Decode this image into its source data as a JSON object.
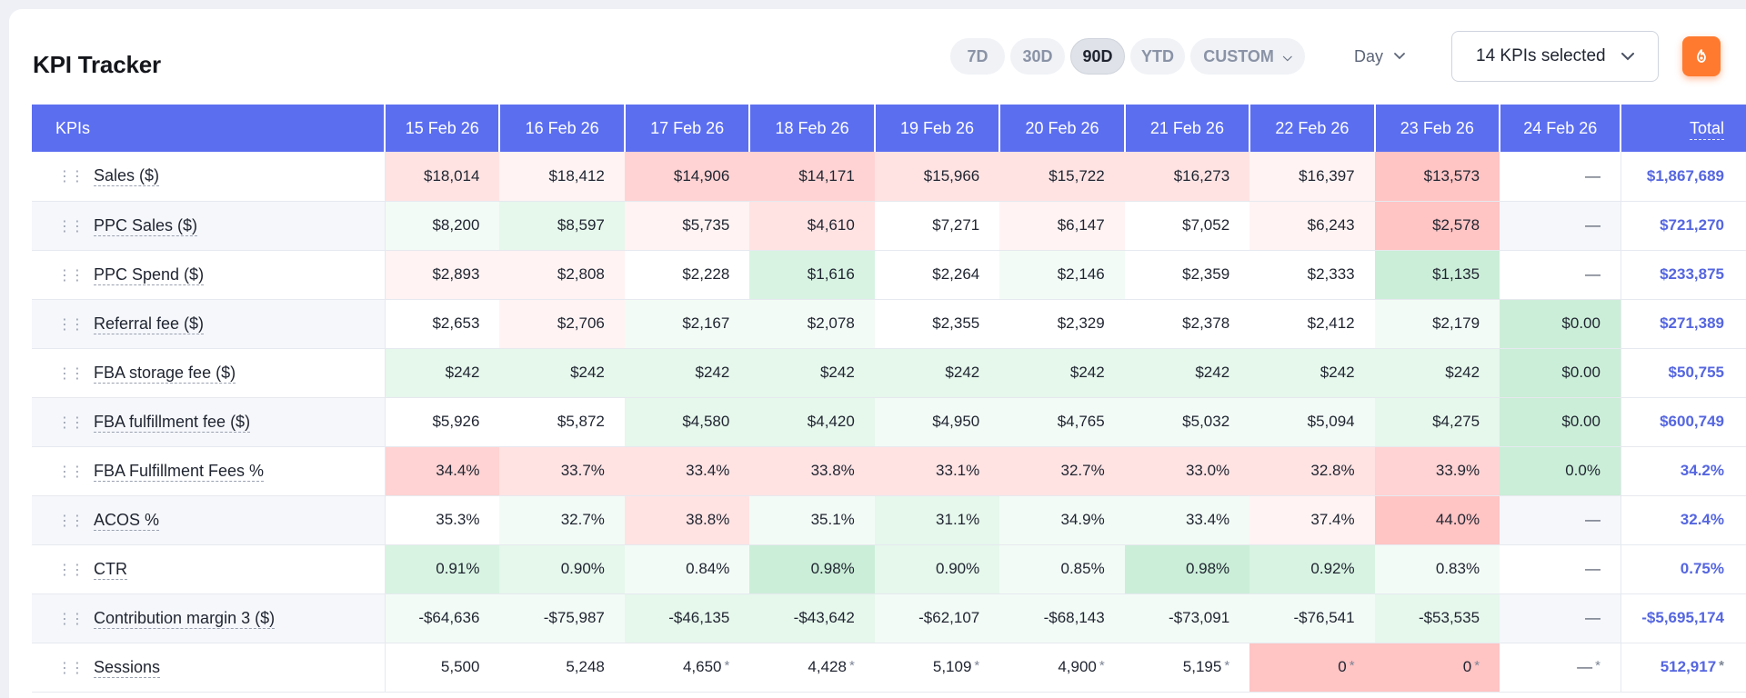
{
  "header": {
    "title": "KPI Tracker",
    "ranges": [
      "7D",
      "30D",
      "90D",
      "YTD"
    ],
    "active_range": "90D",
    "custom_label": "CUSTOM",
    "granularity": "Day",
    "kpi_selector": "14 KPIs selected",
    "action_icon": "refresh-flame-icon"
  },
  "table": {
    "kpi_header": "KPIs",
    "dates": [
      "15 Feb 26",
      "16 Feb 26",
      "17 Feb 26",
      "18 Feb 26",
      "19 Feb 26",
      "20 Feb 26",
      "21 Feb 26",
      "22 Feb 26",
      "23 Feb 26",
      "24 Feb 26"
    ],
    "total_header": "Total",
    "colors": {
      "r1": "#fff3f3",
      "r2": "#ffe3e3",
      "r3": "#ffd3d3",
      "r4": "#ffc4c4",
      "g1": "#f3fbf6",
      "g2": "#e6f7ec",
      "g3": "#d8f3e2",
      "g4": "#cbeed8",
      "w": "#ffffff",
      "a": "#f5f7fb"
    },
    "rows": [
      {
        "name": "Sales ($)",
        "total": "$1,867,689",
        "cells": [
          [
            "$18,014",
            "r2"
          ],
          [
            "$18,412",
            "r1"
          ],
          [
            "$14,906",
            "r3"
          ],
          [
            "$14,171",
            "r3"
          ],
          [
            "$15,966",
            "r2"
          ],
          [
            "$15,722",
            "r2"
          ],
          [
            "$16,273",
            "r2"
          ],
          [
            "$16,397",
            "r1"
          ],
          [
            "$13,573",
            "r4"
          ],
          [
            "—",
            "w"
          ]
        ]
      },
      {
        "name": "PPC Sales ($)",
        "total": "$721,270",
        "cells": [
          [
            "$8,200",
            "g1"
          ],
          [
            "$8,597",
            "g2"
          ],
          [
            "$5,735",
            "r1"
          ],
          [
            "$4,610",
            "r2"
          ],
          [
            "$7,271",
            "w"
          ],
          [
            "$6,147",
            "r1"
          ],
          [
            "$7,052",
            "w"
          ],
          [
            "$6,243",
            "r1"
          ],
          [
            "$2,578",
            "r4"
          ],
          [
            "—",
            "a"
          ]
        ]
      },
      {
        "name": "PPC Spend ($)",
        "total": "$233,875",
        "cells": [
          [
            "$2,893",
            "r1"
          ],
          [
            "$2,808",
            "r1"
          ],
          [
            "$2,228",
            "w"
          ],
          [
            "$1,616",
            "g3"
          ],
          [
            "$2,264",
            "w"
          ],
          [
            "$2,146",
            "g1"
          ],
          [
            "$2,359",
            "w"
          ],
          [
            "$2,333",
            "w"
          ],
          [
            "$1,135",
            "g4"
          ],
          [
            "—",
            "w"
          ]
        ]
      },
      {
        "name": "Referral fee ($)",
        "total": "$271,389",
        "cells": [
          [
            "$2,653",
            "w"
          ],
          [
            "$2,706",
            "r1"
          ],
          [
            "$2,167",
            "g1"
          ],
          [
            "$2,078",
            "g1"
          ],
          [
            "$2,355",
            "w"
          ],
          [
            "$2,329",
            "w"
          ],
          [
            "$2,378",
            "w"
          ],
          [
            "$2,412",
            "w"
          ],
          [
            "$2,179",
            "g1"
          ],
          [
            "$0.00",
            "g4"
          ]
        ]
      },
      {
        "name": "FBA storage fee ($)",
        "total": "$50,755",
        "cells": [
          [
            "$242",
            "g2"
          ],
          [
            "$242",
            "g2"
          ],
          [
            "$242",
            "g2"
          ],
          [
            "$242",
            "g2"
          ],
          [
            "$242",
            "g2"
          ],
          [
            "$242",
            "g2"
          ],
          [
            "$242",
            "g2"
          ],
          [
            "$242",
            "g2"
          ],
          [
            "$242",
            "g2"
          ],
          [
            "$0.00",
            "g4"
          ]
        ]
      },
      {
        "name": "FBA fulfillment fee ($)",
        "total": "$600,749",
        "cells": [
          [
            "$5,926",
            "w"
          ],
          [
            "$5,872",
            "w"
          ],
          [
            "$4,580",
            "g2"
          ],
          [
            "$4,420",
            "g2"
          ],
          [
            "$4,950",
            "g1"
          ],
          [
            "$4,765",
            "g1"
          ],
          [
            "$5,032",
            "g1"
          ],
          [
            "$5,094",
            "g1"
          ],
          [
            "$4,275",
            "g2"
          ],
          [
            "$0.00",
            "g4"
          ]
        ]
      },
      {
        "name": "FBA Fulfillment Fees %",
        "total": "34.2%",
        "cells": [
          [
            "34.4%",
            "r3"
          ],
          [
            "33.7%",
            "r2"
          ],
          [
            "33.4%",
            "r2"
          ],
          [
            "33.8%",
            "r2"
          ],
          [
            "33.1%",
            "r2"
          ],
          [
            "32.7%",
            "r2"
          ],
          [
            "33.0%",
            "r2"
          ],
          [
            "32.8%",
            "r2"
          ],
          [
            "33.9%",
            "r3"
          ],
          [
            "0.0%",
            "g4"
          ]
        ]
      },
      {
        "name": "ACOS %",
        "total": "32.4%",
        "cells": [
          [
            "35.3%",
            "w"
          ],
          [
            "32.7%",
            "g1"
          ],
          [
            "38.8%",
            "r2"
          ],
          [
            "35.1%",
            "g1"
          ],
          [
            "31.1%",
            "g2"
          ],
          [
            "34.9%",
            "g1"
          ],
          [
            "33.4%",
            "g1"
          ],
          [
            "37.4%",
            "r1"
          ],
          [
            "44.0%",
            "r4"
          ],
          [
            "—",
            "a"
          ]
        ]
      },
      {
        "name": "CTR",
        "total": "0.75%",
        "cells": [
          [
            "0.91%",
            "g3"
          ],
          [
            "0.90%",
            "g2"
          ],
          [
            "0.84%",
            "g1"
          ],
          [
            "0.98%",
            "g4"
          ],
          [
            "0.90%",
            "g2"
          ],
          [
            "0.85%",
            "g1"
          ],
          [
            "0.98%",
            "g4"
          ],
          [
            "0.92%",
            "g3"
          ],
          [
            "0.83%",
            "g1"
          ],
          [
            "—",
            "w"
          ]
        ]
      },
      {
        "name": "Contribution margin 3 ($)",
        "total": "-$5,695,174",
        "cells": [
          [
            "-$64,636",
            "g1"
          ],
          [
            "-$75,987",
            "g1"
          ],
          [
            "-$46,135",
            "g2"
          ],
          [
            "-$43,642",
            "g2"
          ],
          [
            "-$62,107",
            "g1"
          ],
          [
            "-$68,143",
            "g1"
          ],
          [
            "-$73,091",
            "g1"
          ],
          [
            "-$76,541",
            "g1"
          ],
          [
            "-$53,535",
            "g2"
          ],
          [
            "—",
            "a"
          ]
        ]
      },
      {
        "name": "Sessions",
        "total": "512,917",
        "cells": [
          [
            "5,500",
            "w",
            false
          ],
          [
            "5,248",
            "w",
            false
          ],
          [
            "4,650",
            "w",
            true
          ],
          [
            "4,428",
            "w",
            true
          ],
          [
            "5,109",
            "w",
            true
          ],
          [
            "4,900",
            "w",
            true
          ],
          [
            "5,195",
            "w",
            true
          ],
          [
            "0",
            "r4",
            true
          ],
          [
            "0",
            "r4",
            true
          ],
          [
            "—",
            "w",
            true
          ]
        ],
        "total_ast": true
      }
    ]
  }
}
